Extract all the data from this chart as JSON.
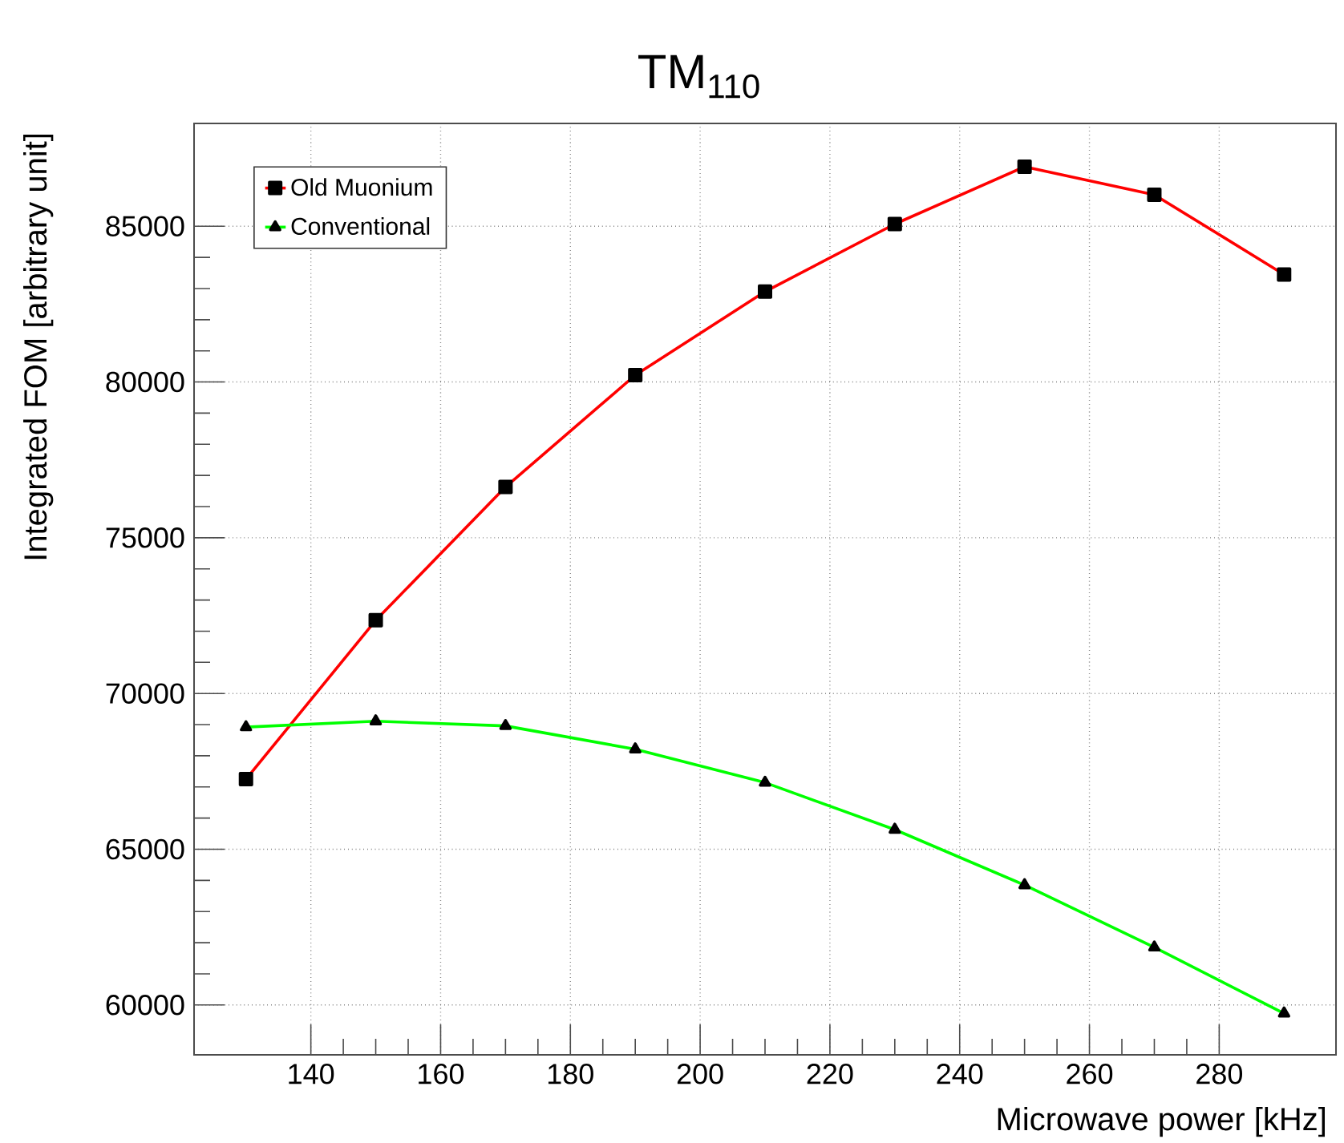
{
  "chart_data": {
    "type": "line",
    "title": "TM$_{110}$",
    "xlabel": "Microwave power [kHz]",
    "ylabel": "Integrated FOM [arbitrary unit]",
    "x": [
      130,
      150,
      170,
      190,
      210,
      230,
      250,
      270,
      290
    ],
    "series": [
      {
        "name": "Old Muonium",
        "color": "#ff0000",
        "marker": "square",
        "values": [
          67250,
          72350,
          76630,
          80220,
          82900,
          85070,
          86910,
          86010,
          83450
        ]
      },
      {
        "name": "Conventional",
        "color": "#00ff00",
        "marker": "triangle",
        "values": [
          68920,
          69110,
          68960,
          68210,
          67140,
          65630,
          63850,
          61850,
          59730
        ]
      }
    ],
    "xlim": [
      122,
      298
    ],
    "ylim": [
      58400,
      88300
    ],
    "xticks": [
      140,
      160,
      180,
      200,
      220,
      240,
      260,
      280
    ],
    "yticks": [
      60000,
      65000,
      70000,
      75000,
      80000,
      85000
    ],
    "grid": true,
    "legend": "top left"
  }
}
